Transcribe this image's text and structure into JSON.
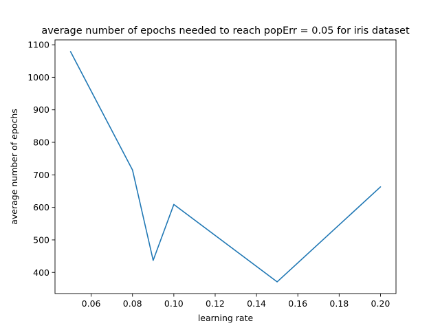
{
  "chart_data": {
    "type": "line",
    "title": "average number of epochs needed to reach popErr = 0.05 for iris dataset",
    "xlabel": "learning rate",
    "ylabel": "average number of epochs",
    "xlim": [
      0.0425,
      0.2075
    ],
    "ylim": [
      335,
      1115
    ],
    "x_ticks": [
      0.06,
      0.08,
      0.1,
      0.12,
      0.14,
      0.16,
      0.18,
      0.2
    ],
    "x_tick_labels": [
      "0.06",
      "0.08",
      "0.10",
      "0.12",
      "0.14",
      "0.16",
      "0.18",
      "0.20"
    ],
    "y_ticks": [
      400,
      500,
      600,
      700,
      800,
      900,
      1000,
      1100
    ],
    "y_tick_labels": [
      "400",
      "500",
      "600",
      "700",
      "800",
      "900",
      "1000",
      "1100"
    ],
    "grid": false,
    "series": [
      {
        "color": "#1f77b4",
        "x": [
          0.05,
          0.08,
          0.09,
          0.1,
          0.15,
          0.2
        ],
        "y": [
          1079,
          715,
          437,
          609,
          371,
          663
        ]
      }
    ]
  }
}
